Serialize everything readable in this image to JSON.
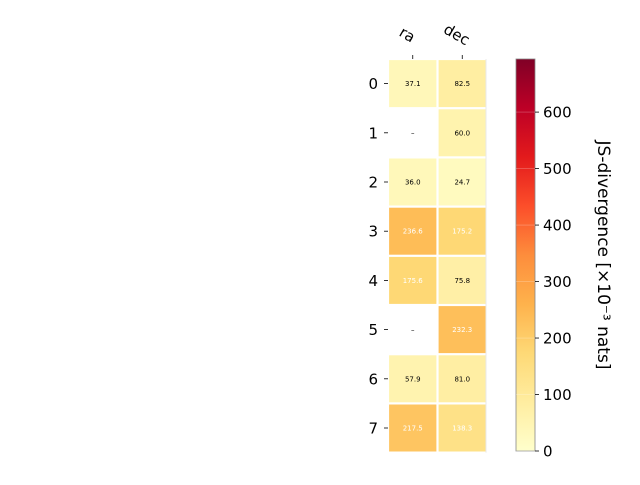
{
  "chart_data": {
    "type": "heatmap",
    "columns": [
      "ra",
      "dec"
    ],
    "rows": [
      "0",
      "1",
      "2",
      "3",
      "4",
      "5",
      "6",
      "7"
    ],
    "values": [
      [
        37.1,
        82.5
      ],
      [
        null,
        60.0
      ],
      [
        36.0,
        24.7
      ],
      [
        236.6,
        175.2
      ],
      [
        175.6,
        75.8
      ],
      [
        null,
        232.3
      ],
      [
        57.9,
        81.0
      ],
      [
        217.5,
        138.3
      ]
    ],
    "cell_labels": [
      [
        "37.1",
        "82.5"
      ],
      [
        "–",
        "60.0"
      ],
      [
        "36.0",
        "24.7"
      ],
      [
        "236.6",
        "175.2"
      ],
      [
        "175.6",
        "75.8"
      ],
      [
        "–",
        "232.3"
      ],
      [
        "57.9",
        "81.0"
      ],
      [
        "217.5",
        "138.3"
      ]
    ],
    "colorbar": {
      "label": "JS-divergence [×10⁻³ nats]",
      "range": [
        0,
        694
      ],
      "ticks": [
        "0",
        "100",
        "200",
        "300",
        "400",
        "500",
        "600"
      ],
      "colormap": "YlOrRd",
      "colors": [
        "#ffffcc",
        "#ffeda0",
        "#fed976",
        "#feb24c",
        "#fd8d3c",
        "#fc4e2a",
        "#e31a1c",
        "#bd0026",
        "#800026"
      ]
    },
    "grid": false,
    "cell_text_dark": "#000000",
    "cell_text_light": "#ffffff"
  }
}
